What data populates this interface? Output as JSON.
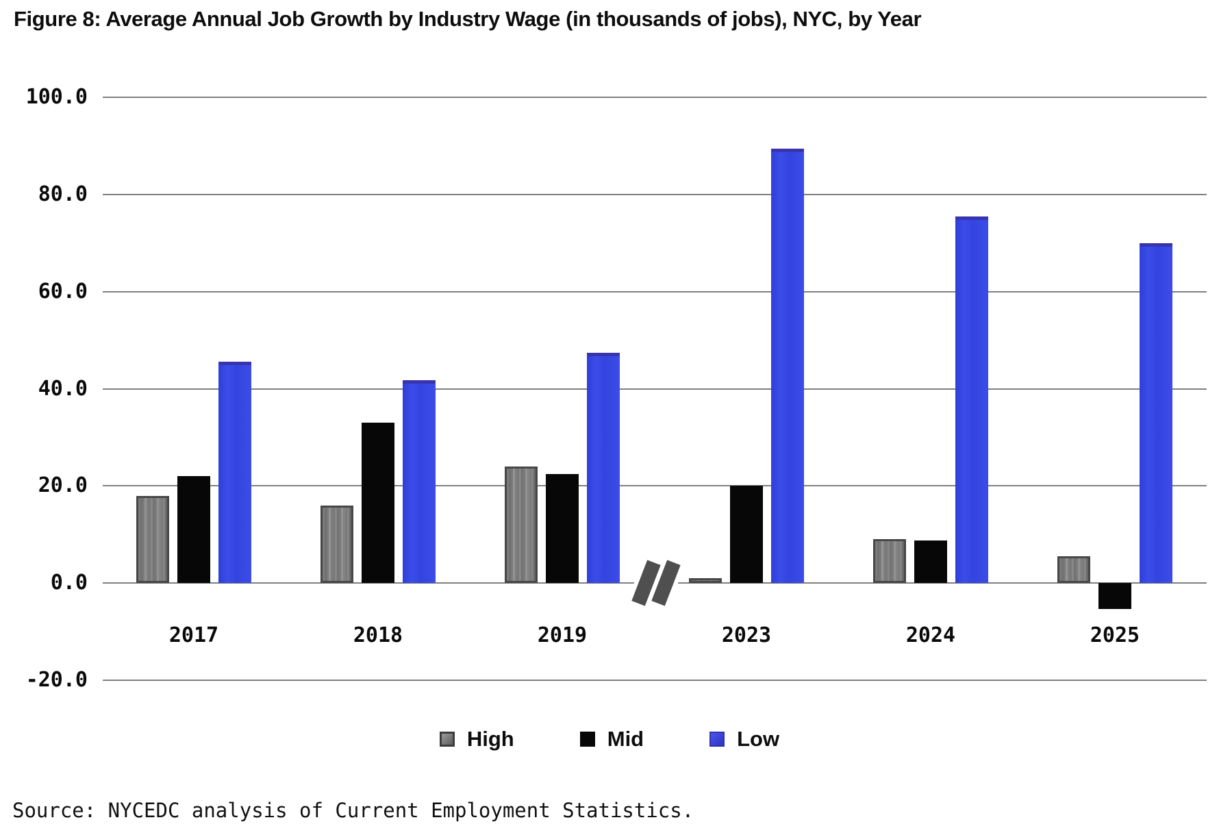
{
  "title": "Figure 8: Average Annual Job Growth by Industry Wage (in thousands of jobs), NYC, by Year",
  "source": "Source: NYCEDC analysis of Current Employment Statistics.",
  "colors": {
    "high": "#7b7b7b",
    "mid": "#070707",
    "low": "#3647e2",
    "gridline": "#7f7f7f",
    "text": "#0d0d0d"
  },
  "chart_data": {
    "type": "bar",
    "title": "Figure 8: Average Annual Job Growth by Industry Wage (in thousands of jobs), NYC, by Year",
    "xlabel": "",
    "ylabel": "",
    "categories": [
      "2017",
      "2018",
      "2019",
      "2023",
      "2024",
      "2025"
    ],
    "series": [
      {
        "name": "High",
        "color": "#7b7b7b",
        "values": [
          18.0,
          16.0,
          24.0,
          1.0,
          9.0,
          5.5
        ]
      },
      {
        "name": "Mid",
        "color": "#070707",
        "values": [
          22.0,
          33.0,
          22.5,
          20.0,
          8.8,
          -5.4
        ]
      },
      {
        "name": "Low",
        "color": "#3647e2",
        "values": [
          45.5,
          41.7,
          47.4,
          89.4,
          75.4,
          70.0
        ]
      }
    ],
    "ylim": [
      -20,
      100
    ],
    "yticks": [
      100,
      80,
      60,
      40,
      20,
      0,
      -20
    ],
    "ytick_labels": [
      "100.0",
      "80.0",
      "60.0",
      "40.0",
      "20.0",
      "0.0",
      "-20.0"
    ],
    "grid": true,
    "legend_position": "bottom",
    "axis_break": {
      "symbol": "//",
      "between": [
        "2019",
        "2023"
      ]
    }
  }
}
